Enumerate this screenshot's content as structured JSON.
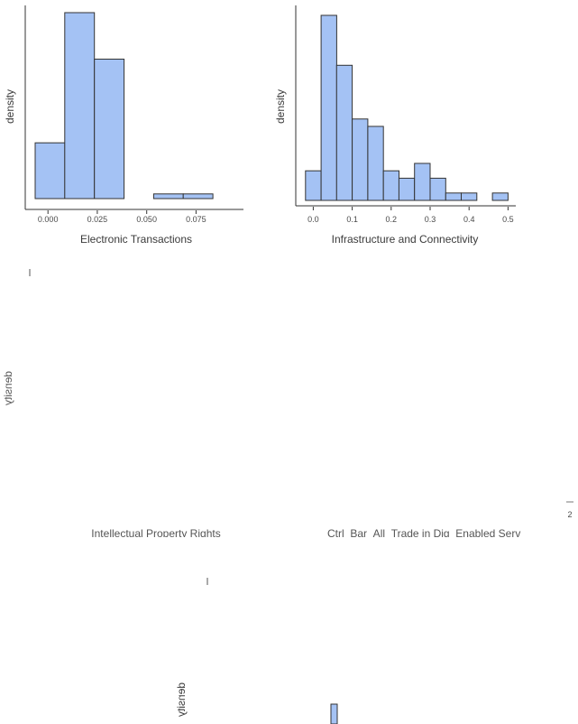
{
  "chart_data": [
    {
      "type": "histogram",
      "xlabel": "Electronic Transactions",
      "ylabel": "density",
      "xticks": [
        0.0,
        0.025,
        0.05,
        0.075
      ],
      "xtick_labels": [
        "0.000",
        "0.025",
        "0.050",
        "0.075"
      ],
      "xlim": [
        -0.0115,
        0.099
      ],
      "ylim": [
        0,
        1.0
      ],
      "bins": [
        {
          "x0": -0.0065,
          "x1": 0.0085,
          "density": 0.3
        },
        {
          "x0": 0.0085,
          "x1": 0.0235,
          "density": 1.0
        },
        {
          "x0": 0.0235,
          "x1": 0.0385,
          "density": 0.75
        },
        {
          "x0": 0.0385,
          "x1": 0.0535,
          "density": 0.0
        },
        {
          "x0": 0.0535,
          "x1": 0.0685,
          "density": 0.025
        },
        {
          "x0": 0.0685,
          "x1": 0.0835,
          "density": 0.025
        }
      ],
      "fill": "#a4c2f4",
      "stroke": "#333333"
    },
    {
      "type": "histogram",
      "xlabel": "Infrastructure and Connectivity",
      "ylabel": "density",
      "xticks": [
        0.0,
        0.1,
        0.2,
        0.3,
        0.4,
        0.5
      ],
      "xtick_labels": [
        "0.0",
        "0.1",
        "0.2",
        "0.3",
        "0.4",
        "0.5"
      ],
      "xlim": [
        -0.045,
        0.52
      ],
      "ylim": [
        0,
        1.0
      ],
      "bins": [
        {
          "x0": -0.02,
          "x1": 0.02,
          "density": 0.16
        },
        {
          "x0": 0.02,
          "x1": 0.06,
          "density": 1.0
        },
        {
          "x0": 0.06,
          "x1": 0.1,
          "density": 0.73
        },
        {
          "x0": 0.1,
          "x1": 0.14,
          "density": 0.44
        },
        {
          "x0": 0.14,
          "x1": 0.18,
          "density": 0.4
        },
        {
          "x0": 0.18,
          "x1": 0.22,
          "density": 0.16
        },
        {
          "x0": 0.22,
          "x1": 0.26,
          "density": 0.12
        },
        {
          "x0": 0.26,
          "x1": 0.3,
          "density": 0.2
        },
        {
          "x0": 0.3,
          "x1": 0.34,
          "density": 0.12
        },
        {
          "x0": 0.34,
          "x1": 0.38,
          "density": 0.04
        },
        {
          "x0": 0.38,
          "x1": 0.42,
          "density": 0.04
        },
        {
          "x0": 0.42,
          "x1": 0.46,
          "density": 0.0
        },
        {
          "x0": 0.46,
          "x1": 0.5,
          "density": 0.04
        }
      ],
      "fill": "#a4c2f4",
      "stroke": "#333333"
    },
    {
      "type": "histogram",
      "xlabel": "Intellectual Property Rights",
      "ylabel": "density",
      "bins": []
    },
    {
      "type": "histogram",
      "xlabel": "Ctrl_Bar_All_Trade in Dig_Enabled Serv",
      "bins": [],
      "xtick_labels": [
        "2"
      ]
    },
    {
      "type": "histogram",
      "ylabel": "density",
      "bins": []
    }
  ]
}
